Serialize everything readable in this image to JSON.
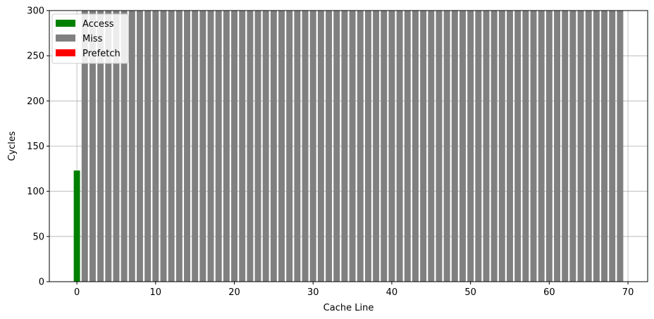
{
  "chart_data": {
    "type": "bar",
    "xlabel": "Cache Line",
    "ylabel": "Cycles",
    "xlim": [
      -3.5,
      72.5
    ],
    "ylim": [
      0,
      300
    ],
    "x_ticks": [
      0,
      10,
      20,
      30,
      40,
      50,
      60,
      70
    ],
    "y_ticks": [
      0,
      50,
      100,
      150,
      200,
      250,
      300
    ],
    "grid": true,
    "legend_position": "top-left",
    "series": [
      {
        "name": "Access",
        "color": "#008000",
        "x": [
          0
        ],
        "values": [
          123
        ]
      },
      {
        "name": "Miss",
        "color": "#808080",
        "x": [
          1,
          2,
          3,
          4,
          5,
          6,
          7,
          8,
          9,
          10,
          11,
          12,
          13,
          14,
          15,
          16,
          17,
          18,
          19,
          20,
          21,
          22,
          23,
          24,
          25,
          26,
          27,
          28,
          29,
          30,
          31,
          32,
          33,
          34,
          35,
          36,
          37,
          38,
          39,
          40,
          41,
          42,
          43,
          44,
          45,
          46,
          47,
          48,
          49,
          50,
          51,
          52,
          53,
          54,
          55,
          56,
          57,
          58,
          59,
          60,
          61,
          62,
          63,
          64,
          65,
          66,
          67,
          68,
          69
        ],
        "values": [
          300,
          300,
          300,
          300,
          300,
          300,
          300,
          300,
          300,
          300,
          300,
          300,
          300,
          300,
          300,
          300,
          300,
          300,
          300,
          300,
          300,
          300,
          300,
          300,
          300,
          300,
          300,
          300,
          300,
          300,
          300,
          300,
          300,
          300,
          300,
          300,
          300,
          300,
          300,
          300,
          300,
          300,
          300,
          300,
          300,
          300,
          300,
          300,
          300,
          300,
          300,
          300,
          300,
          300,
          300,
          300,
          300,
          300,
          300,
          300,
          300,
          300,
          300,
          300,
          300,
          300,
          300,
          300,
          300
        ]
      },
      {
        "name": "Prefetch",
        "color": "#ff0000",
        "x": [],
        "values": []
      }
    ]
  }
}
